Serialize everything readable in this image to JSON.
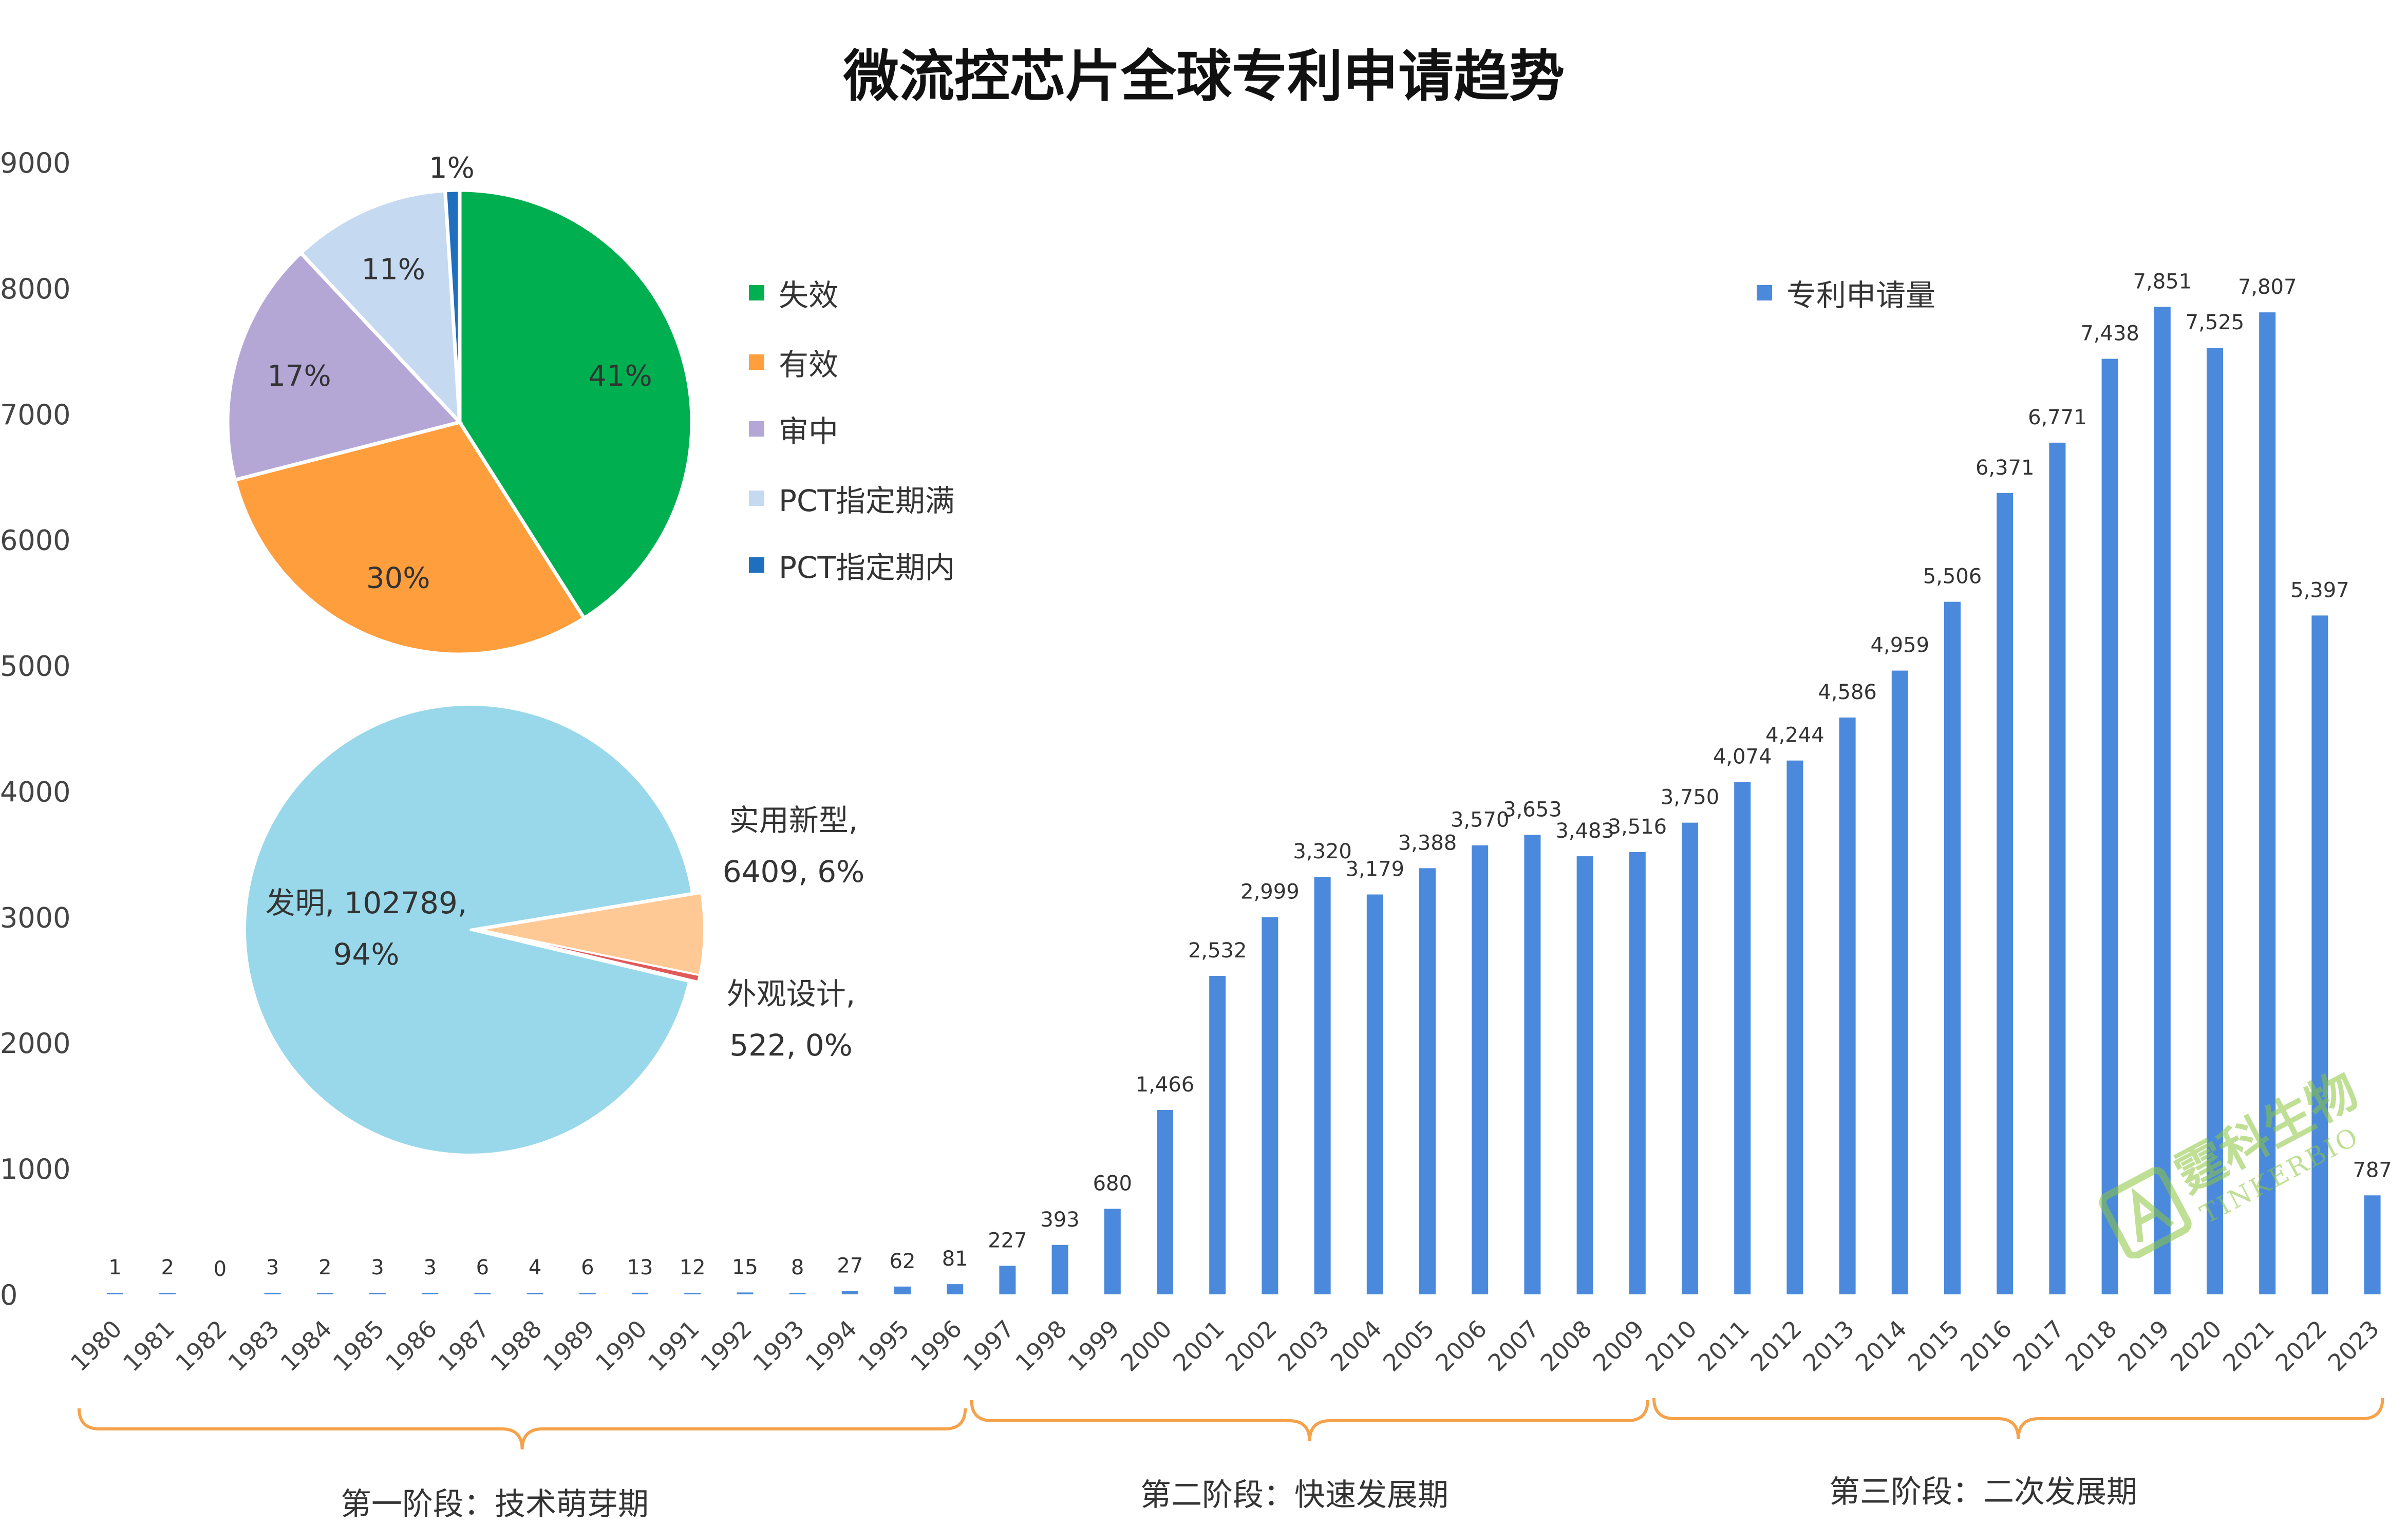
{
  "title": "微流控芯片全球专利申请趋势",
  "chart_data": [
    {
      "type": "bar",
      "title": "",
      "xlabel": "",
      "ylabel": "",
      "ylim": [
        0,
        9000
      ],
      "yticks": [
        "0",
        "1000",
        "2000",
        "3000",
        "4000",
        "5000",
        "6000",
        "7000",
        "8000",
        "9000"
      ],
      "grid": false,
      "legend": "top-right",
      "bar_color": "#4a89dc",
      "series": [
        {
          "name": "专利申请量",
          "categories": [
            "1980",
            "1981",
            "1982",
            "1983",
            "1984",
            "1985",
            "1986",
            "1987",
            "1988",
            "1989",
            "1990",
            "1991",
            "1992",
            "1993",
            "1994",
            "1995",
            "1996",
            "1997",
            "1998",
            "1999",
            "2000",
            "2001",
            "2002",
            "2003",
            "2004",
            "2005",
            "2006",
            "2007",
            "2008",
            "2009",
            "2010",
            "2011",
            "2012",
            "2013",
            "2014",
            "2015",
            "2016",
            "2017",
            "2018",
            "2019",
            "2020",
            "2021",
            "2022",
            "2023"
          ],
          "values": [
            1,
            2,
            0,
            3,
            2,
            3,
            3,
            6,
            4,
            6,
            13,
            12,
            15,
            8,
            27,
            62,
            81,
            227,
            393,
            680,
            1466,
            2532,
            2999,
            3320,
            3179,
            3388,
            3570,
            3653,
            3483,
            3516,
            3750,
            4074,
            4244,
            4586,
            4959,
            5506,
            6371,
            6771,
            7438,
            7851,
            7525,
            7807,
            5397,
            787
          ],
          "labels": [
            "1",
            "2",
            "0",
            "3",
            "2",
            "3",
            "3",
            "6",
            "4",
            "6",
            "13",
            "12",
            "15",
            "8",
            "27",
            "62",
            "81",
            "227",
            "393",
            "680",
            "1,466",
            "2,532",
            "2,999",
            "3,320",
            "3,179",
            "3,388",
            "3,570",
            "3,653",
            "3,483",
            "3,516",
            "3,750",
            "4,074",
            "4,244",
            "4,586",
            "4,959",
            "5,506",
            "6,371",
            "6,771",
            "7,438",
            "7,851",
            "7,525",
            "7,807",
            "5,397",
            "787"
          ]
        }
      ]
    },
    {
      "type": "pie",
      "title": "",
      "legend": "right",
      "slices": [
        {
          "name": "失效",
          "value": 41,
          "label": "41%",
          "color": "#00b050"
        },
        {
          "name": "有效",
          "value": 30,
          "label": "30%",
          "color": "#ff9e3d"
        },
        {
          "name": "审中",
          "value": 17,
          "label": "17%",
          "color": "#b4a7d6"
        },
        {
          "name": "PCT指定期满",
          "value": 11,
          "label": "11%",
          "color": "#c5d9f1"
        },
        {
          "name": "PCT指定期内",
          "value": 1,
          "label": "1%",
          "color": "#1f6fbf"
        }
      ]
    },
    {
      "type": "pie",
      "title": "",
      "slices": [
        {
          "name": "发明",
          "value": 102789,
          "label_line1": "发明, 102789,",
          "label_line2": "94%",
          "color": "#99d8ea"
        },
        {
          "name": "实用新型",
          "value": 6409,
          "label_line1": "实用新型,",
          "label_line2": "6409, 6%",
          "color": "#ffc996"
        },
        {
          "name": "外观设计",
          "value": 522,
          "label_line1": "外观设计,",
          "label_line2": "522, 0%",
          "color": "#e05a5a"
        }
      ]
    }
  ],
  "stages": [
    {
      "label": "第一阶段：技术萌芽期",
      "from": "1980",
      "to": "1996"
    },
    {
      "label": "第二阶段：快速发展期",
      "from": "1997",
      "to": "2009"
    },
    {
      "label": "第三阶段：二次发展期",
      "from": "2010",
      "to": "2023"
    }
  ],
  "watermark": {
    "text": "霆科生物",
    "subtext": "TINKERBIO",
    "color": "#8cc63f"
  }
}
